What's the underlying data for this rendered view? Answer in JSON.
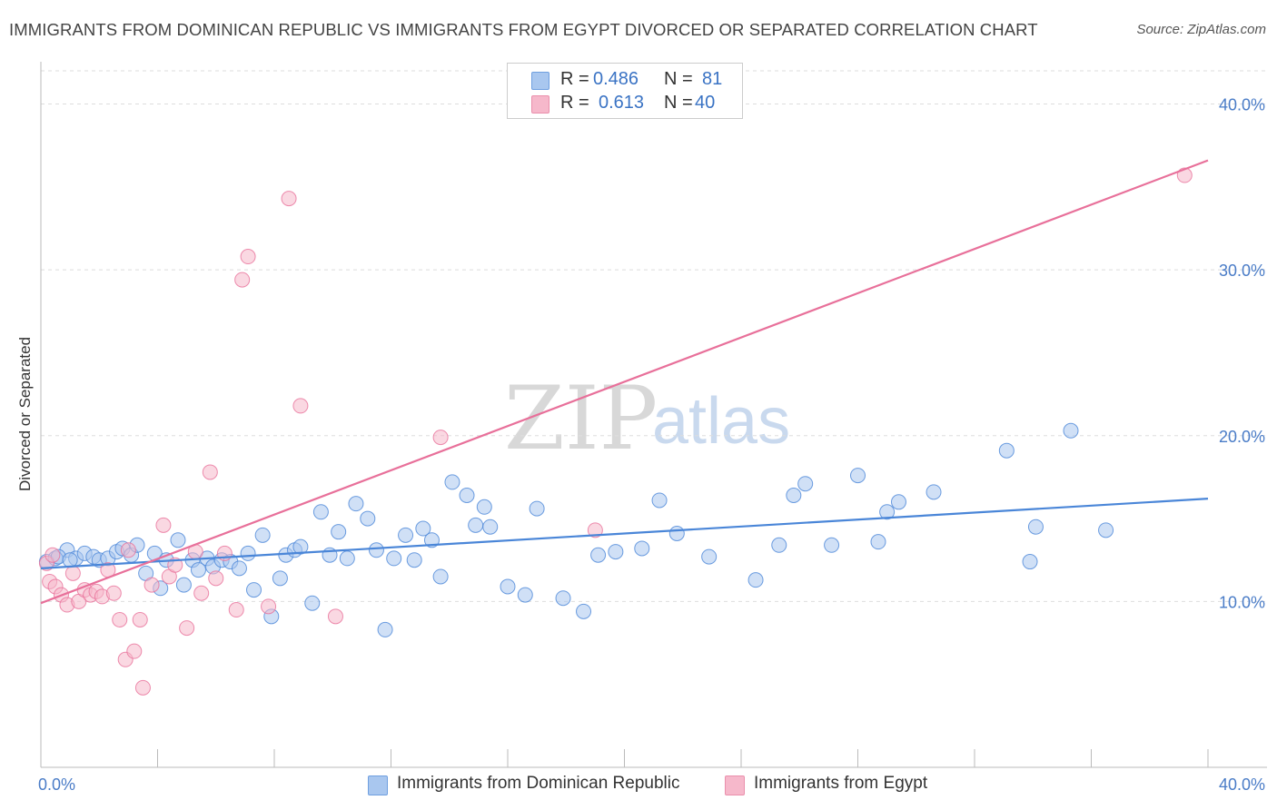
{
  "header": {
    "title": "IMMIGRANTS FROM DOMINICAN REPUBLIC VS IMMIGRANTS FROM EGYPT DIVORCED OR SEPARATED CORRELATION CHART",
    "source": "Source: ZipAtlas.com"
  },
  "watermark": {
    "zip": "ZIP",
    "atlas": "atlas"
  },
  "legend": {
    "rows": [
      {
        "r_label": "R =",
        "r_value": "0.486",
        "n_label": "N =",
        "n_value": "81",
        "color": "#a9c7ef"
      },
      {
        "r_label": "R =",
        "r_value": "0.613",
        "n_label": "N =",
        "n_value": "40",
        "color": "#f6b8cb"
      }
    ]
  },
  "bottom_legend": {
    "items": [
      {
        "label": "Immigrants from Dominican Republic",
        "color": "#a9c7ef"
      },
      {
        "label": "Immigrants from Egypt",
        "color": "#f6b8cb"
      }
    ]
  },
  "chart_data": {
    "type": "scatter",
    "title": "IMMIGRANTS FROM DOMINICAN REPUBLIC VS IMMIGRANTS FROM EGYPT DIVORCED OR SEPARATED CORRELATION CHART",
    "xlabel": "",
    "ylabel": "Divorced or Separated",
    "xlim": [
      0,
      40
    ],
    "ylim": [
      0,
      42
    ],
    "x_tick_labels": [
      "0.0%",
      "40.0%"
    ],
    "y_tick_labels": [
      "10.0%",
      "20.0%",
      "30.0%",
      "40.0%"
    ],
    "y_ticks": [
      10,
      20,
      30,
      40
    ],
    "grid": true,
    "legend_position": "top-center",
    "series": [
      {
        "name": "Immigrants from Dominican Republic",
        "color": "#4a86d8",
        "fill": "#a9c7ef",
        "trend": {
          "x": [
            0,
            40
          ],
          "y": [
            12.0,
            16.2
          ]
        },
        "points": [
          [
            0.2,
            12.4
          ],
          [
            0.5,
            12.6
          ],
          [
            0.9,
            13.1
          ],
          [
            1.2,
            12.6
          ],
          [
            1.5,
            12.9
          ],
          [
            1.8,
            12.7
          ],
          [
            2.0,
            12.5
          ],
          [
            2.3,
            12.6
          ],
          [
            2.6,
            13.0
          ],
          [
            2.8,
            13.2
          ],
          [
            3.1,
            12.8
          ],
          [
            3.3,
            13.4
          ],
          [
            3.6,
            11.7
          ],
          [
            3.9,
            12.9
          ],
          [
            4.1,
            10.8
          ],
          [
            4.3,
            12.5
          ],
          [
            4.7,
            13.7
          ],
          [
            4.9,
            11.0
          ],
          [
            5.2,
            12.5
          ],
          [
            5.4,
            11.9
          ],
          [
            5.7,
            12.6
          ],
          [
            5.9,
            12.1
          ],
          [
            6.2,
            12.5
          ],
          [
            6.5,
            12.4
          ],
          [
            6.8,
            12.0
          ],
          [
            7.1,
            12.9
          ],
          [
            7.3,
            10.7
          ],
          [
            7.6,
            14.0
          ],
          [
            7.9,
            9.1
          ],
          [
            8.2,
            11.4
          ],
          [
            8.4,
            12.8
          ],
          [
            8.7,
            13.1
          ],
          [
            8.9,
            13.3
          ],
          [
            9.3,
            9.9
          ],
          [
            9.6,
            15.4
          ],
          [
            9.9,
            12.8
          ],
          [
            10.2,
            14.2
          ],
          [
            10.5,
            12.6
          ],
          [
            10.8,
            15.9
          ],
          [
            11.2,
            15.0
          ],
          [
            11.5,
            13.1
          ],
          [
            11.8,
            8.3
          ],
          [
            12.1,
            12.6
          ],
          [
            12.5,
            14.0
          ],
          [
            12.8,
            12.5
          ],
          [
            13.1,
            14.4
          ],
          [
            13.4,
            13.7
          ],
          [
            13.7,
            11.5
          ],
          [
            14.1,
            17.2
          ],
          [
            14.6,
            16.4
          ],
          [
            14.9,
            14.6
          ],
          [
            15.2,
            15.7
          ],
          [
            15.4,
            14.5
          ],
          [
            16.0,
            10.9
          ],
          [
            16.6,
            10.4
          ],
          [
            17.0,
            15.6
          ],
          [
            17.9,
            10.2
          ],
          [
            18.6,
            9.4
          ],
          [
            19.1,
            12.8
          ],
          [
            19.7,
            13.0
          ],
          [
            20.6,
            13.2
          ],
          [
            21.2,
            16.1
          ],
          [
            21.8,
            14.1
          ],
          [
            22.9,
            12.7
          ],
          [
            24.5,
            11.3
          ],
          [
            25.3,
            13.4
          ],
          [
            25.8,
            16.4
          ],
          [
            26.2,
            17.1
          ],
          [
            27.1,
            13.4
          ],
          [
            28.0,
            17.6
          ],
          [
            28.7,
            13.6
          ],
          [
            29.0,
            15.4
          ],
          [
            29.4,
            16.0
          ],
          [
            30.6,
            16.6
          ],
          [
            33.1,
            19.1
          ],
          [
            33.9,
            12.4
          ],
          [
            34.1,
            14.5
          ],
          [
            35.3,
            20.3
          ],
          [
            36.5,
            14.3
          ],
          [
            0.6,
            12.7
          ],
          [
            1.0,
            12.5
          ]
        ]
      },
      {
        "name": "Immigrants from Egypt",
        "color": "#e8709a",
        "fill": "#f6b8cb",
        "trend": {
          "x": [
            0,
            40
          ],
          "y": [
            9.9,
            36.6
          ]
        },
        "points": [
          [
            0.2,
            12.3
          ],
          [
            0.3,
            11.2
          ],
          [
            0.5,
            10.9
          ],
          [
            0.7,
            10.4
          ],
          [
            0.9,
            9.8
          ],
          [
            1.1,
            11.7
          ],
          [
            1.3,
            10.0
          ],
          [
            1.5,
            10.7
          ],
          [
            1.7,
            10.4
          ],
          [
            1.9,
            10.6
          ],
          [
            2.1,
            10.3
          ],
          [
            2.3,
            11.9
          ],
          [
            2.5,
            10.5
          ],
          [
            2.7,
            8.9
          ],
          [
            2.9,
            6.5
          ],
          [
            3.0,
            13.1
          ],
          [
            3.2,
            7.0
          ],
          [
            3.4,
            8.9
          ],
          [
            3.5,
            4.8
          ],
          [
            3.8,
            11.0
          ],
          [
            4.2,
            14.6
          ],
          [
            4.4,
            11.5
          ],
          [
            4.6,
            12.2
          ],
          [
            5.0,
            8.4
          ],
          [
            5.3,
            13.0
          ],
          [
            5.5,
            10.5
          ],
          [
            5.8,
            17.8
          ],
          [
            6.0,
            11.4
          ],
          [
            6.3,
            12.9
          ],
          [
            6.7,
            9.5
          ],
          [
            6.9,
            29.4
          ],
          [
            7.1,
            30.8
          ],
          [
            8.5,
            34.3
          ],
          [
            7.8,
            9.7
          ],
          [
            8.9,
            21.8
          ],
          [
            10.1,
            9.1
          ],
          [
            13.7,
            19.9
          ],
          [
            19.0,
            14.3
          ],
          [
            39.2,
            35.7
          ],
          [
            0.4,
            12.8
          ]
        ]
      }
    ]
  }
}
